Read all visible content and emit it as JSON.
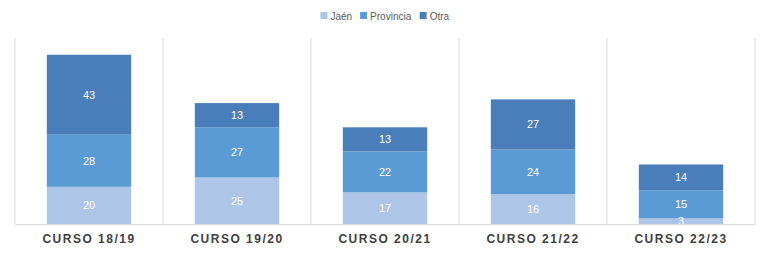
{
  "chart_data": {
    "type": "bar",
    "stacked": true,
    "data_labels": true,
    "tick_labels": "x",
    "categories": [
      "CURSO 18/19",
      "CURSO 19/20",
      "CURSO 20/21",
      "CURSO 21/22",
      "CURSO 22/23"
    ],
    "series": [
      {
        "name": "Jaén",
        "color": "#adc5e7",
        "values": [
          20,
          25,
          17,
          16,
          3
        ]
      },
      {
        "name": "Provincia",
        "color": "#5b9bd5",
        "values": [
          28,
          27,
          22,
          24,
          15
        ]
      },
      {
        "name": "Otra",
        "color": "#4a7ebb",
        "values": [
          43,
          13,
          13,
          27,
          14
        ]
      }
    ],
    "ylim": [
      0,
      100
    ],
    "legend": "top"
  }
}
